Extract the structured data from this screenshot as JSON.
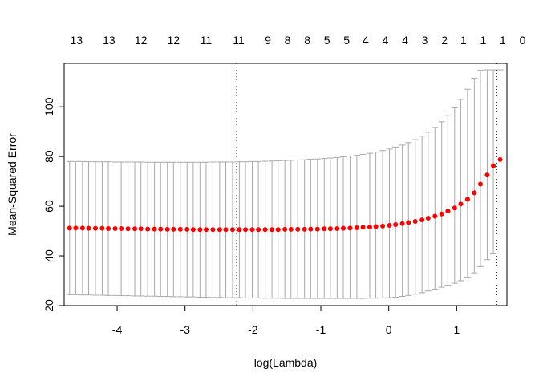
{
  "chart_data": {
    "type": "scatter",
    "xlabel": "log(Lambda)",
    "ylabel": "Mean-Squared Error",
    "xlim": [
      -4.78,
      1.74
    ],
    "ylim": [
      20,
      117.5
    ],
    "x_ticks": [
      "-4",
      "-3",
      "-2",
      "-1",
      "0",
      "1"
    ],
    "y_ticks": [
      "20",
      "40",
      "60",
      "80",
      "100"
    ],
    "top_axis_ticks": [
      {
        "x": -4.6,
        "label": "13"
      },
      {
        "x": -4.12,
        "label": "13"
      },
      {
        "x": -3.65,
        "label": "12"
      },
      {
        "x": -3.17,
        "label": "12"
      },
      {
        "x": -2.69,
        "label": "11"
      },
      {
        "x": -2.21,
        "label": "11"
      },
      {
        "x": -1.78,
        "label": "9"
      },
      {
        "x": -1.49,
        "label": "8"
      },
      {
        "x": -1.2,
        "label": "8"
      },
      {
        "x": -0.91,
        "label": "5"
      },
      {
        "x": -0.62,
        "label": "5"
      },
      {
        "x": -0.34,
        "label": "4"
      },
      {
        "x": -0.05,
        "label": "4"
      },
      {
        "x": 0.24,
        "label": "4"
      },
      {
        "x": 0.53,
        "label": "3"
      },
      {
        "x": 0.82,
        "label": "2"
      },
      {
        "x": 1.1,
        "label": "1"
      },
      {
        "x": 1.39,
        "label": "1"
      },
      {
        "x": 1.68,
        "label": "1"
      },
      {
        "x": 1.97,
        "label": "0"
      }
    ],
    "vlines": [
      -2.24,
      1.59
    ],
    "series": [
      {
        "x": [
          -4.7,
          -4.61,
          -4.51,
          -4.42,
          -4.32,
          -4.22,
          -4.13,
          -4.03,
          -3.94,
          -3.84,
          -3.74,
          -3.65,
          -3.55,
          -3.45,
          -3.36,
          -3.26,
          -3.17,
          -3.07,
          -2.97,
          -2.88,
          -2.78,
          -2.69,
          -2.59,
          -2.49,
          -2.4,
          -2.3,
          -2.2,
          -2.11,
          -2.01,
          -1.92,
          -1.82,
          -1.72,
          -1.63,
          -1.53,
          -1.44,
          -1.34,
          -1.24,
          -1.15,
          -1.05,
          -0.95,
          -0.86,
          -0.76,
          -0.67,
          -0.57,
          -0.47,
          -0.38,
          -0.28,
          -0.19,
          -0.09,
          0.01,
          0.1,
          0.2,
          0.29,
          0.39,
          0.49,
          0.58,
          0.68,
          0.78,
          0.87,
          0.97,
          1.06,
          1.16,
          1.26,
          1.35,
          1.45,
          1.54,
          1.64
        ],
        "y": [
          51.2,
          51.2,
          51.2,
          51.1,
          51.1,
          51.1,
          51.0,
          51.0,
          51.0,
          50.9,
          50.9,
          50.9,
          50.8,
          50.8,
          50.8,
          50.7,
          50.7,
          50.7,
          50.7,
          50.6,
          50.6,
          50.6,
          50.6,
          50.6,
          50.6,
          50.6,
          50.6,
          50.6,
          50.6,
          50.6,
          50.6,
          50.6,
          50.6,
          50.7,
          50.7,
          50.7,
          50.7,
          50.8,
          50.8,
          50.9,
          50.9,
          51.0,
          51.1,
          51.2,
          51.3,
          51.5,
          51.6,
          51.8,
          52.0,
          52.3,
          52.6,
          53.0,
          53.4,
          53.9,
          54.5,
          55.2,
          56.0,
          56.9,
          58.0,
          59.3,
          60.9,
          62.8,
          65.4,
          68.9,
          72.6,
          76.3,
          78.8
        ],
        "lower": [
          24.4,
          24.4,
          24.3,
          24.3,
          24.2,
          24.2,
          24.1,
          24.1,
          24.0,
          24.0,
          23.9,
          23.9,
          23.8,
          23.8,
          23.7,
          23.7,
          23.6,
          23.6,
          23.5,
          23.5,
          23.4,
          23.4,
          23.3,
          23.3,
          23.2,
          23.2,
          23.2,
          23.1,
          23.1,
          23.1,
          23.0,
          23.0,
          23.0,
          22.9,
          22.9,
          22.9,
          22.9,
          22.9,
          22.9,
          22.9,
          22.9,
          22.9,
          22.9,
          22.9,
          22.9,
          22.9,
          23.0,
          23.0,
          23.1,
          23.2,
          23.4,
          23.7,
          24.1,
          24.6,
          25.2,
          25.9,
          26.6,
          27.4,
          28.2,
          29.0,
          30.0,
          31.4,
          33.2,
          35.7,
          38.5,
          40.8,
          42.8
        ],
        "upper": [
          78.0,
          78.0,
          78.0,
          77.9,
          77.9,
          77.9,
          77.9,
          77.8,
          77.8,
          77.8,
          77.8,
          77.8,
          77.7,
          77.7,
          77.7,
          77.7,
          77.7,
          77.7,
          77.7,
          77.7,
          77.7,
          77.7,
          77.8,
          77.8,
          77.8,
          77.8,
          77.9,
          77.9,
          78.0,
          78.0,
          78.1,
          78.2,
          78.3,
          78.4,
          78.5,
          78.6,
          78.7,
          78.9,
          79.0,
          79.2,
          79.4,
          79.6,
          79.9,
          80.2,
          80.5,
          80.9,
          81.3,
          81.8,
          82.4,
          83.0,
          83.8,
          84.6,
          85.6,
          86.8,
          88.2,
          89.8,
          91.7,
          94.0,
          96.6,
          99.6,
          103.0,
          107.1,
          111.5,
          114.7,
          114.9,
          114.9,
          114.9
        ]
      }
    ],
    "colors": {
      "points": "#ff0000",
      "errorbars": "#a9a9a9",
      "axis": "#000000",
      "vlines": "#000000"
    }
  }
}
